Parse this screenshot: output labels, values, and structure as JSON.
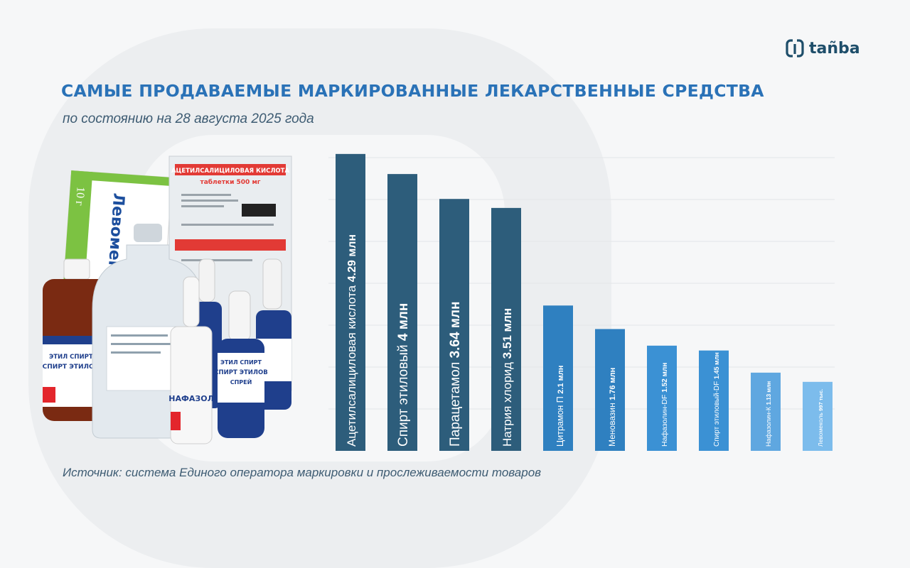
{
  "brand": {
    "name": "tañba"
  },
  "header": {
    "title": "САМЫЕ ПРОДАВАЕМЫЕ МАРКИРОВАННЫЕ ЛЕКАРСТВЕННЫЕ СРЕДСТВА",
    "subtitle": "по состоянию на 28 августа 2025 года"
  },
  "footer": {
    "source": "Источник: система Единого оператора маркировки и прослеживаемости товаров"
  },
  "product_labels": {
    "levomekol_box": "Левомеколь",
    "box_weight": "10 г",
    "aspirin_strip_1": "АЦЕТИЛСАЛИЦИЛОВАЯ КИСЛОТА",
    "aspirin_strip_2": "таблетки 500 мг",
    "ethyl_bottle_1": "ЭТИЛ СПИРТ-DF",
    "ethyl_bottle_2": "СПИРТ ЭТИЛОВЫЙ",
    "spray_1": "ЭТИЛ СПИРТ",
    "spray_2": "СПИРТ ЭТИЛОВ",
    "spray_3": "СПРЕЙ",
    "nafazolin": "НАФАЗОЛ"
  },
  "colors": {
    "dark": "#2d5d7b",
    "mid": "#2f80c0",
    "light": "#5fa7e0",
    "pale": "#7cbcec",
    "title": "#2a72b7"
  },
  "chart_data": {
    "type": "bar",
    "categories": [
      "Ацетилсалициловая кислота",
      "Спирт этиловый",
      "Парацетамол",
      "Натрия хлорид",
      "Цитрамон П",
      "Меновазин",
      "Нафазолин-DF",
      "Спирт этиловый-DF",
      "Нафазолин-К",
      "Левомеколь"
    ],
    "values": [
      4.29,
      4.0,
      3.64,
      3.51,
      2.1,
      1.76,
      1.52,
      1.45,
      1.13,
      0.997
    ],
    "value_labels": [
      "4.29 млн",
      "4 млн",
      "3.64 млн",
      "3.51 млн",
      "2.1 млн",
      "1.76 млн",
      "1.52 млн",
      "1.45 млн",
      "1.13 млн",
      "997 тыс."
    ],
    "unit": "млн",
    "ylim": [
      0,
      4.35
    ],
    "grid": true,
    "bar_colors": [
      "#2d5d7b",
      "#2d5d7b",
      "#2d5d7b",
      "#2d5d7b",
      "#2f80c0",
      "#2f80c0",
      "#3b91d4",
      "#3b91d4",
      "#5fa7e0",
      "#7cbcec"
    ]
  }
}
